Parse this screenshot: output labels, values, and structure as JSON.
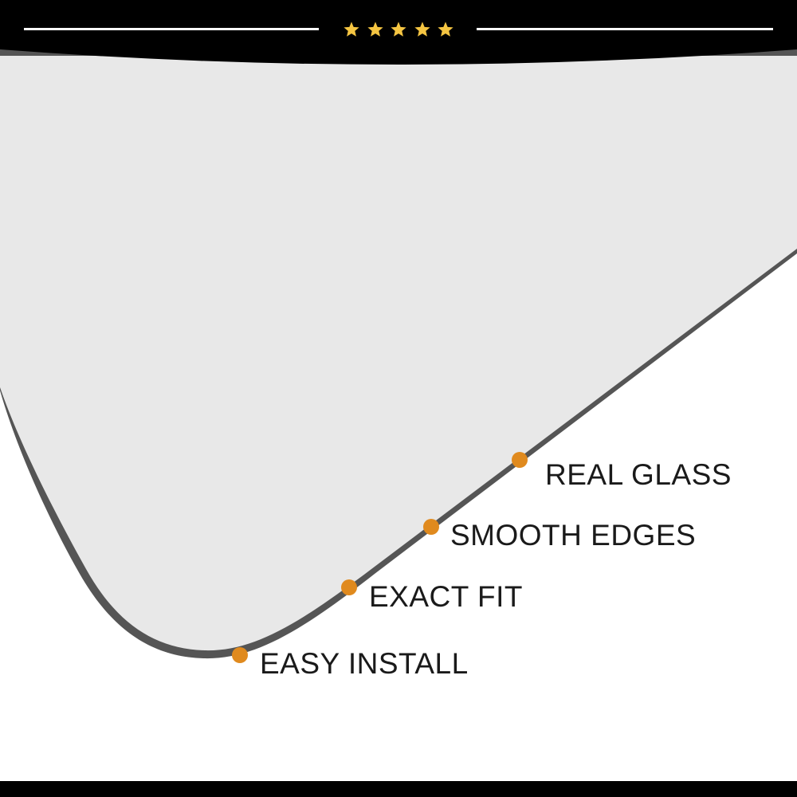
{
  "header": {
    "rating_stars": 5,
    "star_color": "#f5c542",
    "bar_color": "#000000"
  },
  "glass": {
    "fill_color": "#e8e8e8",
    "edge_color": "#555555"
  },
  "accent_color": "#e08a1e",
  "features": [
    {
      "label": "REAL GLASS"
    },
    {
      "label": "SMOOTH EDGES"
    },
    {
      "label": "EXACT FIT"
    },
    {
      "label": "EASY INSTALL"
    }
  ]
}
